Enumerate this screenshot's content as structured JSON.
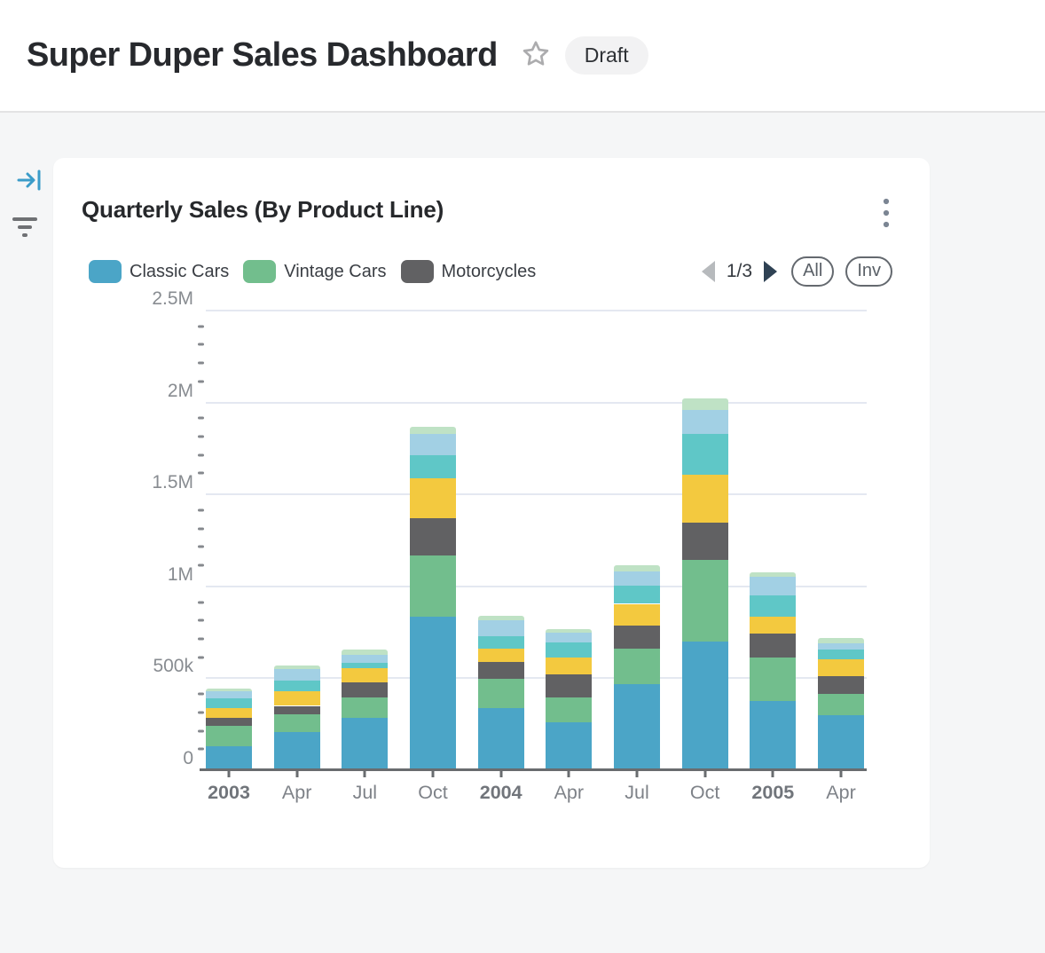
{
  "header": {
    "title": "Super Duper Sales Dashboard",
    "badge": "Draft",
    "star_icon": "star-outline"
  },
  "left_rail": {
    "collapse_icon": "arrow-to-bar",
    "filter_icon": "filter-lines"
  },
  "card": {
    "title": "Quarterly Sales (By Product Line)",
    "menu_icon": "kebab-vertical"
  },
  "legend": {
    "items": [
      {
        "label": "Classic Cars",
        "color": "#4BA5C7"
      },
      {
        "label": "Vintage Cars",
        "color": "#72BE8D"
      },
      {
        "label": "Motorcycles",
        "color": "#616163"
      }
    ],
    "pagination": {
      "label": "1/3",
      "current_page": 1,
      "total_pages": 3
    },
    "buttons": {
      "all": "All",
      "inv": "Inv"
    }
  },
  "chart_data": {
    "type": "bar",
    "stacked": true,
    "title": "Quarterly Sales (By Product Line)",
    "categories": [
      "2003",
      "Apr",
      "Jul",
      "Oct",
      "2004",
      "Apr",
      "Jul",
      "Oct",
      "2005",
      "Apr"
    ],
    "bold_category_indices": [
      0,
      4,
      8
    ],
    "series": [
      {
        "name": "Classic Cars",
        "color": "#4BA5C7",
        "legend_visible": true,
        "values": [
          130000,
          210000,
          285000,
          834000,
          338000,
          261000,
          470000,
          700000,
          378000,
          301000
        ]
      },
      {
        "name": "Vintage Cars",
        "color": "#72BE8D",
        "legend_visible": true,
        "values": [
          110000,
          92000,
          109000,
          333000,
          161000,
          133000,
          193000,
          443000,
          234000,
          113000
        ]
      },
      {
        "name": "Motorcycles",
        "color": "#616163",
        "legend_visible": true,
        "values": [
          45000,
          48000,
          84000,
          205000,
          89000,
          129000,
          126000,
          205000,
          129000,
          96000
        ]
      },
      {
        "name": "",
        "color": "#F3C93F",
        "legend_visible": false,
        "values": [
          55000,
          78000,
          78000,
          214000,
          75000,
          92000,
          116000,
          257000,
          92000,
          94000
        ]
      },
      {
        "name": "",
        "color": "#5FC7C7",
        "legend_visible": false,
        "values": [
          50000,
          59000,
          27000,
          126000,
          65000,
          81000,
          101000,
          226000,
          120000,
          51000
        ]
      },
      {
        "name": "",
        "color": "#A2D0E4",
        "legend_visible": false,
        "values": [
          40000,
          65000,
          45000,
          116000,
          89000,
          53000,
          76000,
          129000,
          98000,
          37000
        ]
      },
      {
        "name": "",
        "color": "#BFE2C5",
        "legend_visible": false,
        "values": [
          15000,
          16000,
          27000,
          40000,
          24000,
          19000,
          32000,
          64000,
          25000,
          28000
        ]
      }
    ],
    "ylim": [
      0,
      2500000
    ],
    "ytick_values": [
      0,
      500000,
      1000000,
      1500000,
      2000000,
      2500000
    ],
    "ytick_labels": [
      "0",
      "500k",
      "1M",
      "1.5M",
      "2M",
      "2.5M"
    ],
    "minor_tick_interval": 100000,
    "grid": "horizontal",
    "legend_position": "top"
  },
  "colors": {
    "page_bg": "#F5F6F7",
    "card_bg": "#FFFFFF",
    "gridline": "#E4E8F1",
    "axis": "#696C6F",
    "tick_label": "#888C91",
    "accent_blue": "#3B9CC9"
  }
}
